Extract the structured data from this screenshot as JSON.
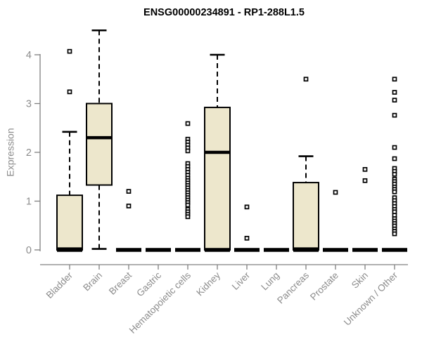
{
  "chart_data": {
    "type": "boxplot",
    "title": "ENSG00000234891 - RP1-288L1.5",
    "xlabel": "",
    "ylabel": "Expression",
    "ylim": [
      0,
      4.6
    ],
    "yticks": [
      0,
      1,
      2,
      3,
      4
    ],
    "grid": false,
    "legend": "none",
    "categories": [
      "Bladder",
      "Brain",
      "Breast",
      "Gastric",
      "Hematopoietic cells",
      "Kidney",
      "Liver",
      "Lung",
      "Pancreas",
      "Prostate",
      "Skin",
      "Unknown / Other"
    ],
    "series": [
      {
        "category": "Bladder",
        "q1": 0,
        "median": 0.02,
        "q3": 1.12,
        "whisker_low": 0,
        "whisker_high": 2.42,
        "outliers": [
          4.07,
          3.24
        ]
      },
      {
        "category": "Brain",
        "q1": 1.33,
        "median": 2.3,
        "q3": 3.0,
        "whisker_low": 0.02,
        "whisker_high": 4.5,
        "outliers": []
      },
      {
        "category": "Breast",
        "q1": 0,
        "median": 0,
        "q3": 0,
        "whisker_low": 0,
        "whisker_high": 0,
        "outliers": [
          1.2,
          0.9
        ]
      },
      {
        "category": "Gastric",
        "q1": 0,
        "median": 0,
        "q3": 0,
        "whisker_low": 0,
        "whisker_high": 0,
        "outliers": []
      },
      {
        "category": "Hematopoietic cells",
        "q1": 0,
        "median": 0,
        "q3": 0,
        "whisker_low": 0,
        "whisker_high": 0,
        "outliers": [
          2.59,
          2.27,
          2.21,
          2.15,
          2.09,
          2.03,
          1.77,
          1.71,
          1.65,
          1.59,
          1.53,
          1.47,
          1.42,
          1.37,
          1.32,
          1.27,
          1.22,
          1.17,
          1.12,
          1.07,
          1.02,
          0.97,
          0.92,
          0.83,
          0.78,
          0.73,
          0.68
        ]
      },
      {
        "category": "Kidney",
        "q1": 0,
        "median": 2.0,
        "q3": 2.92,
        "whisker_low": 0,
        "whisker_high": 4.0,
        "outliers": []
      },
      {
        "category": "Liver",
        "q1": 0,
        "median": 0,
        "q3": 0,
        "whisker_low": 0,
        "whisker_high": 0,
        "outliers": [
          0.88,
          0.24
        ]
      },
      {
        "category": "Lung",
        "q1": 0,
        "median": 0,
        "q3": 0,
        "whisker_low": 0,
        "whisker_high": 0,
        "outliers": []
      },
      {
        "category": "Pancreas",
        "q1": 0,
        "median": 0.02,
        "q3": 1.38,
        "whisker_low": 0,
        "whisker_high": 1.92,
        "outliers": [
          3.5
        ]
      },
      {
        "category": "Prostate",
        "q1": 0,
        "median": 0,
        "q3": 0,
        "whisker_low": 0,
        "whisker_high": 0,
        "outliers": [
          1.18
        ]
      },
      {
        "category": "Skin",
        "q1": 0,
        "median": 0,
        "q3": 0,
        "whisker_low": 0,
        "whisker_high": 0,
        "outliers": [
          1.65,
          1.42
        ]
      },
      {
        "category": "Unknown / Other",
        "q1": 0,
        "median": 0,
        "q3": 0,
        "whisker_low": 0,
        "whisker_high": 0,
        "outliers": [
          3.5,
          3.23,
          3.07,
          2.76,
          2.1,
          1.87,
          1.67,
          1.61,
          1.55,
          1.45,
          1.4,
          1.35,
          1.29,
          1.24,
          1.19,
          1.07,
          1.01,
          0.95,
          0.89,
          0.83,
          0.78,
          0.71,
          0.64,
          0.59,
          0.54,
          0.49,
          0.43,
          0.38,
          0.33
        ]
      }
    ],
    "colors": {
      "box_fill": "#EDE7CC",
      "box_stroke": "#000000",
      "axis": "#808080",
      "tick_label": "#8c8c8c",
      "title": "#000000",
      "background": "#ffffff"
    }
  }
}
